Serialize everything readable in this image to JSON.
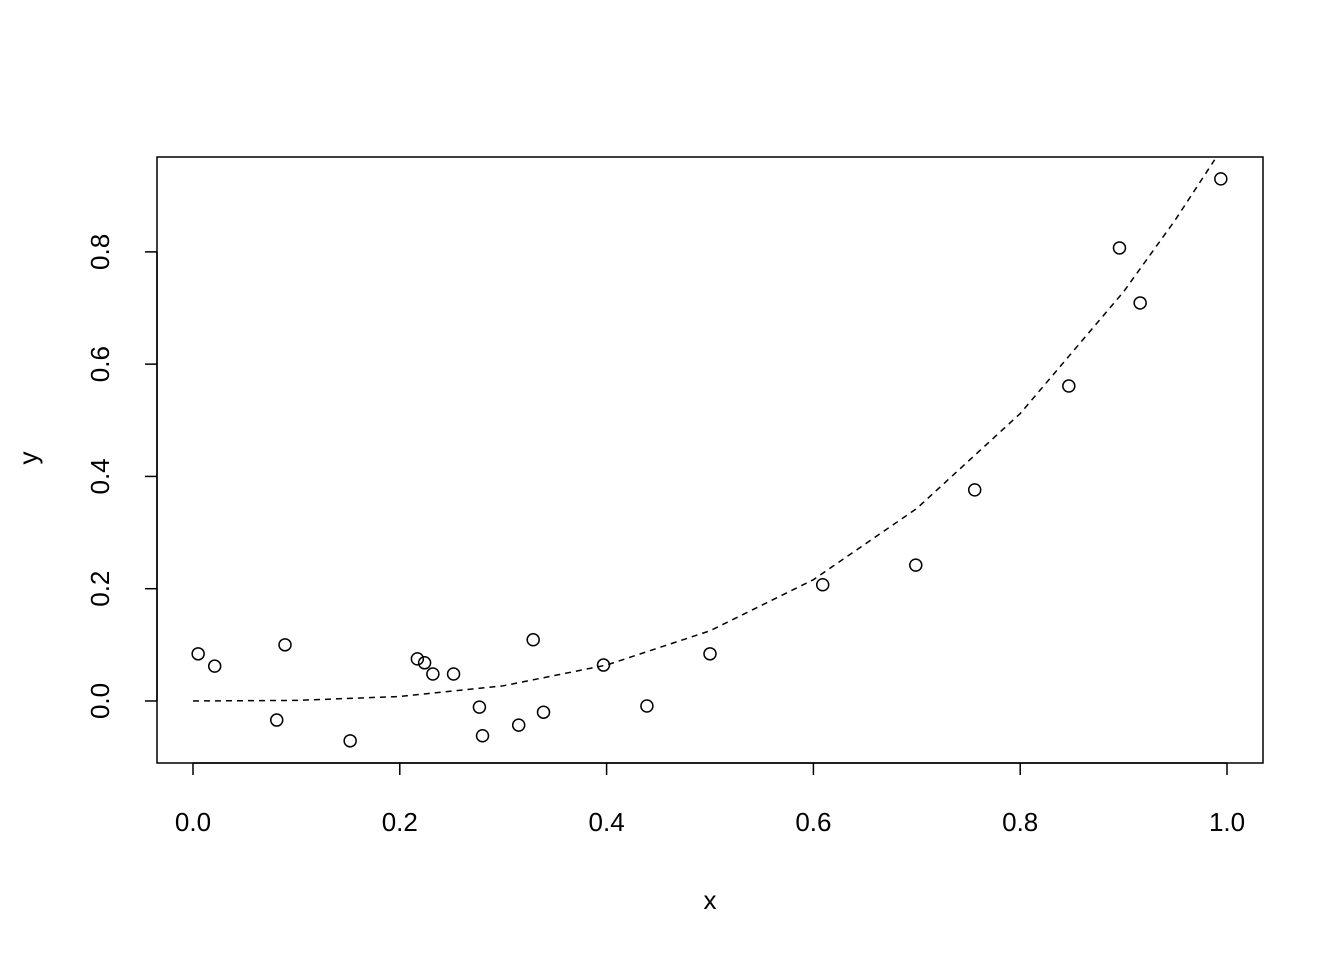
{
  "chart_data": {
    "type": "scatter",
    "x_label": "x",
    "y_label": "y",
    "x": [
      0.005,
      0.021,
      0.081,
      0.089,
      0.152,
      0.217,
      0.224,
      0.232,
      0.252,
      0.277,
      0.28,
      0.315,
      0.329,
      0.339,
      0.397,
      0.439,
      0.5,
      0.609,
      0.699,
      0.756,
      0.847,
      0.896,
      0.916,
      0.994
    ],
    "values": [
      0.084,
      0.062,
      -0.034,
      0.1,
      -0.071,
      0.075,
      0.068,
      0.048,
      0.048,
      -0.011,
      -0.062,
      -0.043,
      0.109,
      -0.02,
      0.064,
      -0.009,
      0.084,
      0.207,
      0.242,
      0.376,
      0.561,
      0.807,
      0.709,
      0.93
    ],
    "color": "#000000",
    "fit": {
      "x": [
        0,
        0.1,
        0.2,
        0.3,
        0.4,
        0.5,
        0.6,
        0.7,
        0.8,
        0.9,
        0.95,
        0.988
      ],
      "y": [
        0,
        0.001,
        0.008,
        0.027,
        0.064,
        0.125,
        0.216,
        0.343,
        0.512,
        0.729,
        0.857,
        0.964
      ]
    },
    "xlim": [
      -0.0348,
      1.0348
    ],
    "ylim": [
      -0.1105,
      0.969
    ],
    "xticks": [
      {
        "value": 0,
        "label": "0.0"
      },
      0.2,
      0.4,
      0.6,
      0.8,
      {
        "value": 1,
        "label": "1.0"
      }
    ],
    "yticks": [
      {
        "value": 0,
        "label": "0.0"
      },
      0.2,
      0.4,
      0.6,
      0.8
    ]
  }
}
